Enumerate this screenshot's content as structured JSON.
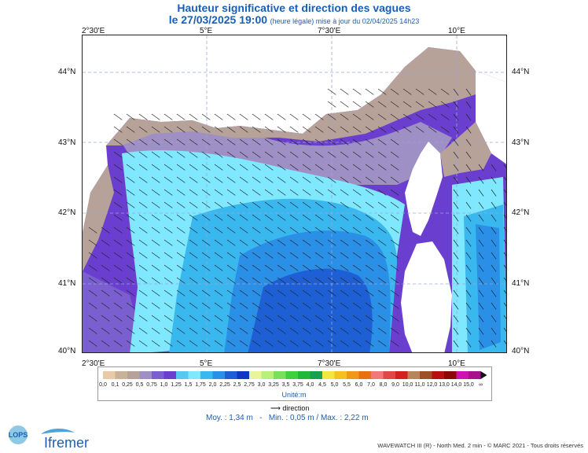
{
  "title": "Hauteur significative et direction des vagues",
  "subtitle": {
    "date_text": "le 27/03/2025 19:00",
    "note": "(heure légale) mise à jour du 02/04/2025 14h23"
  },
  "axes": {
    "lon_labels": [
      "2°30'E",
      "5°E",
      "7°30'E",
      "10°E"
    ],
    "lat_labels": [
      "44°N",
      "43°N",
      "42°N",
      "41°N",
      "40°N"
    ]
  },
  "legend": {
    "labels": [
      "0,0",
      "0,1",
      "0,25",
      "0,5",
      "0,75",
      "1,0",
      "1,25",
      "1,5",
      "1,75",
      "2,0",
      "2,25",
      "2,5",
      "2,75",
      "3,0",
      "3,25",
      "3,5",
      "3,75",
      "4,0",
      "4,5",
      "5,0",
      "5,5",
      "6,0",
      "7,0",
      "8,0",
      "9,0",
      "10,0",
      "11,0",
      "12,0",
      "13,0",
      "14,0",
      "15,0",
      "∞"
    ],
    "colors": [
      "#e8c9a8",
      "#c9b29a",
      "#b7a299",
      "#9e8fc4",
      "#7b5fd0",
      "#6a3fcf",
      "#58c8f0",
      "#7fe8ff",
      "#39b7ef",
      "#2a8fe6",
      "#1f5fd6",
      "#1236c4",
      "#e8f59a",
      "#b8f07a",
      "#7ae05a",
      "#3fd040",
      "#20b838",
      "#18a050",
      "#f2e640",
      "#f5c020",
      "#f09818",
      "#e87010",
      "#f07878",
      "#e04848",
      "#d42020",
      "#b8865a",
      "#a05028",
      "#b81010",
      "#8c0808",
      "#d010b0",
      "#a8108c"
    ],
    "unit": "Unité:m",
    "direction_label": "direction"
  },
  "stats": {
    "text": "Moy. : 1,34 m   -   Min. : 0,05 m / Max. : 2,22 m"
  },
  "footer": "WAVEWATCH III (R) - North Med. 2 min - © MARC 2021 - Tous droits réservés",
  "logos": {
    "lops": "LOPS",
    "ifremer": "Ifremer"
  }
}
